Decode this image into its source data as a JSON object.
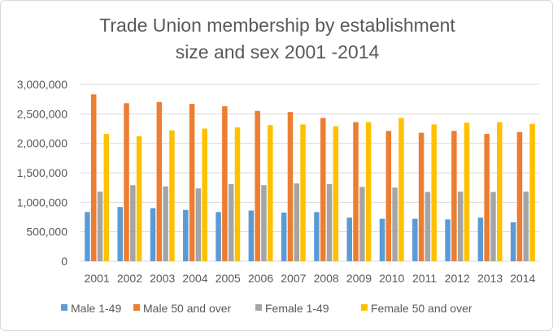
{
  "chart_data": {
    "type": "bar",
    "title_lines": [
      "Trade Union membership by establishment",
      "size and sex 2001 -2014"
    ],
    "xlabel": "",
    "ylabel": "",
    "ylim": [
      0,
      3000000
    ],
    "yticks": [
      0,
      500000,
      1000000,
      1500000,
      2000000,
      2500000,
      3000000
    ],
    "ytick_labels": [
      "0",
      "500,000",
      "1,000,000",
      "1,500,000",
      "2,000,000",
      "2,500,000",
      "3,000,000"
    ],
    "grid": true,
    "legend_position": "bottom",
    "categories": [
      "2001",
      "2002",
      "2003",
      "2004",
      "2005",
      "2006",
      "2007",
      "2008",
      "2009",
      "2010",
      "2011",
      "2012",
      "2013",
      "2014"
    ],
    "series": [
      {
        "name": "Male 1-49",
        "color": "#5b9bd5",
        "values": [
          834000,
          920000,
          900000,
          870000,
          834000,
          860000,
          825000,
          834000,
          740000,
          720000,
          720000,
          710000,
          740000,
          660000
        ]
      },
      {
        "name": "Male 50 and over",
        "color": "#ed7d31",
        "values": [
          2830000,
          2680000,
          2700000,
          2670000,
          2630000,
          2550000,
          2530000,
          2430000,
          2360000,
          2210000,
          2180000,
          2210000,
          2160000,
          2190000
        ]
      },
      {
        "name": "Female 1-49",
        "color": "#a5a5a5",
        "values": [
          1180000,
          1290000,
          1270000,
          1235000,
          1310000,
          1290000,
          1320000,
          1310000,
          1260000,
          1250000,
          1175000,
          1180000,
          1175000,
          1180000
        ]
      },
      {
        "name": "Female 50 and over",
        "color": "#ffc000",
        "values": [
          2160000,
          2120000,
          2220000,
          2250000,
          2270000,
          2310000,
          2320000,
          2290000,
          2360000,
          2430000,
          2320000,
          2350000,
          2360000,
          2330000
        ]
      }
    ]
  }
}
